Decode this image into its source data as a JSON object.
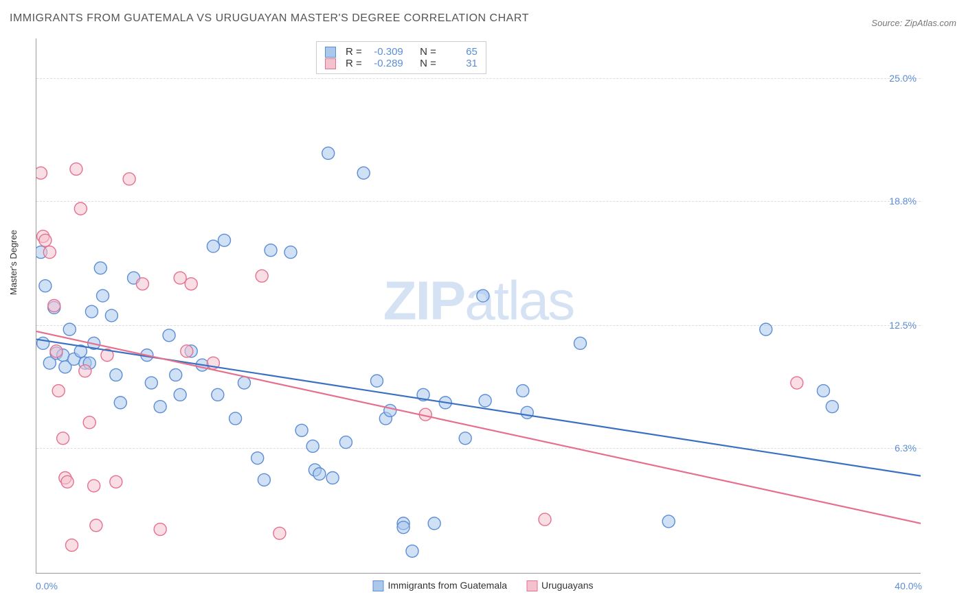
{
  "title": "IMMIGRANTS FROM GUATEMALA VS URUGUAYAN MASTER'S DEGREE CORRELATION CHART",
  "source_label": "Source:",
  "source_name": "ZipAtlas.com",
  "watermark": {
    "left": "ZIP",
    "right": "atlas"
  },
  "ylabel": "Master's Degree",
  "chart": {
    "type": "scatter",
    "xlim": [
      0,
      40
    ],
    "ylim": [
      0,
      27
    ],
    "x_tick_left": "0.0%",
    "x_tick_right": "40.0%",
    "y_ticks": [
      {
        "value": 6.3,
        "label": "6.3%"
      },
      {
        "value": 12.5,
        "label": "12.5%"
      },
      {
        "value": 18.8,
        "label": "18.8%"
      },
      {
        "value": 25.0,
        "label": "25.0%"
      }
    ],
    "background_color": "#ffffff",
    "grid_color": "#dddddd",
    "axis_color": "#999999",
    "tick_label_color": "#5b8dd6",
    "marker_radius": 9,
    "marker_stroke_width": 1.4,
    "trend_line_width": 2.2,
    "series": [
      {
        "name": "Immigrants from Guatemala",
        "fill_color": "#a9c8ec",
        "stroke_color": "#5b8dd6",
        "line_color": "#3a70c0",
        "fill_opacity": 0.55,
        "R": -0.309,
        "N": 65,
        "trend": {
          "x1": 0,
          "y1": 11.8,
          "x2": 40,
          "y2": 4.9
        },
        "points": [
          [
            0.2,
            16.2
          ],
          [
            0.4,
            14.5
          ],
          [
            0.3,
            11.6
          ],
          [
            0.6,
            10.6
          ],
          [
            0.8,
            13.4
          ],
          [
            0.9,
            11.1
          ],
          [
            1.2,
            11.0
          ],
          [
            1.5,
            12.3
          ],
          [
            1.3,
            10.4
          ],
          [
            1.7,
            10.8
          ],
          [
            2.0,
            11.2
          ],
          [
            2.2,
            10.6
          ],
          [
            2.4,
            10.6
          ],
          [
            2.5,
            13.2
          ],
          [
            2.6,
            11.6
          ],
          [
            2.9,
            15.4
          ],
          [
            3.0,
            14.0
          ],
          [
            3.4,
            13.0
          ],
          [
            3.6,
            10.0
          ],
          [
            3.8,
            8.6
          ],
          [
            4.4,
            14.9
          ],
          [
            5.0,
            11.0
          ],
          [
            5.2,
            9.6
          ],
          [
            5.6,
            8.4
          ],
          [
            6.0,
            12.0
          ],
          [
            6.3,
            10.0
          ],
          [
            6.5,
            9.0
          ],
          [
            7.0,
            11.2
          ],
          [
            7.5,
            10.5
          ],
          [
            8.0,
            16.5
          ],
          [
            8.2,
            9.0
          ],
          [
            8.5,
            16.8
          ],
          [
            9.0,
            7.8
          ],
          [
            9.4,
            9.6
          ],
          [
            10.0,
            5.8
          ],
          [
            10.3,
            4.7
          ],
          [
            10.6,
            16.3
          ],
          [
            11.5,
            16.2
          ],
          [
            12.0,
            7.2
          ],
          [
            12.5,
            6.4
          ],
          [
            12.6,
            5.2
          ],
          [
            12.8,
            5.0
          ],
          [
            13.2,
            21.2
          ],
          [
            13.4,
            4.8
          ],
          [
            14.0,
            6.6
          ],
          [
            14.8,
            20.2
          ],
          [
            15.4,
            9.7
          ],
          [
            15.8,
            7.8
          ],
          [
            16.0,
            8.2
          ],
          [
            16.6,
            2.5
          ],
          [
            16.6,
            2.3
          ],
          [
            17.0,
            1.1
          ],
          [
            17.5,
            9.0
          ],
          [
            18.0,
            2.5
          ],
          [
            18.5,
            8.6
          ],
          [
            19.4,
            6.8
          ],
          [
            20.2,
            14.0
          ],
          [
            20.3,
            8.7
          ],
          [
            22.0,
            9.2
          ],
          [
            22.2,
            8.1
          ],
          [
            24.6,
            11.6
          ],
          [
            28.6,
            2.6
          ],
          [
            33.0,
            12.3
          ],
          [
            35.6,
            9.2
          ],
          [
            36.0,
            8.4
          ]
        ]
      },
      {
        "name": "Uruguayans",
        "fill_color": "#f4c2cf",
        "stroke_color": "#e76f8e",
        "line_color": "#e76f8e",
        "fill_opacity": 0.55,
        "R": -0.289,
        "N": 31,
        "trend": {
          "x1": 0,
          "y1": 12.2,
          "x2": 40,
          "y2": 2.5
        },
        "points": [
          [
            0.2,
            20.2
          ],
          [
            0.3,
            17.0
          ],
          [
            0.4,
            16.8
          ],
          [
            0.6,
            16.2
          ],
          [
            0.8,
            13.5
          ],
          [
            0.9,
            11.2
          ],
          [
            1.0,
            9.2
          ],
          [
            1.2,
            6.8
          ],
          [
            1.3,
            4.8
          ],
          [
            1.4,
            4.6
          ],
          [
            1.6,
            1.4
          ],
          [
            1.8,
            20.4
          ],
          [
            2.0,
            18.4
          ],
          [
            2.2,
            10.2
          ],
          [
            2.4,
            7.6
          ],
          [
            2.6,
            4.4
          ],
          [
            2.7,
            2.4
          ],
          [
            3.2,
            11.0
          ],
          [
            3.6,
            4.6
          ],
          [
            4.2,
            19.9
          ],
          [
            4.8,
            14.6
          ],
          [
            5.6,
            2.2
          ],
          [
            6.5,
            14.9
          ],
          [
            7.0,
            14.6
          ],
          [
            8.0,
            10.6
          ],
          [
            10.2,
            15.0
          ],
          [
            11.0,
            2.0
          ],
          [
            17.6,
            8.0
          ],
          [
            23.0,
            2.7
          ],
          [
            34.4,
            9.6
          ],
          [
            6.8,
            11.2
          ]
        ]
      }
    ]
  },
  "stats_box": {
    "r_label": "R =",
    "n_label": "N =",
    "rows": [
      {
        "swatch_fill": "#a9c8ec",
        "swatch_stroke": "#5b8dd6",
        "R": "-0.309",
        "N": "65"
      },
      {
        "swatch_fill": "#f4c2cf",
        "swatch_stroke": "#e76f8e",
        "R": "-0.289",
        "N": "31"
      }
    ]
  },
  "bottom_legend": [
    {
      "swatch_fill": "#a9c8ec",
      "swatch_stroke": "#5b8dd6",
      "label": "Immigrants from Guatemala"
    },
    {
      "swatch_fill": "#f4c2cf",
      "swatch_stroke": "#e76f8e",
      "label": "Uruguayans"
    }
  ]
}
